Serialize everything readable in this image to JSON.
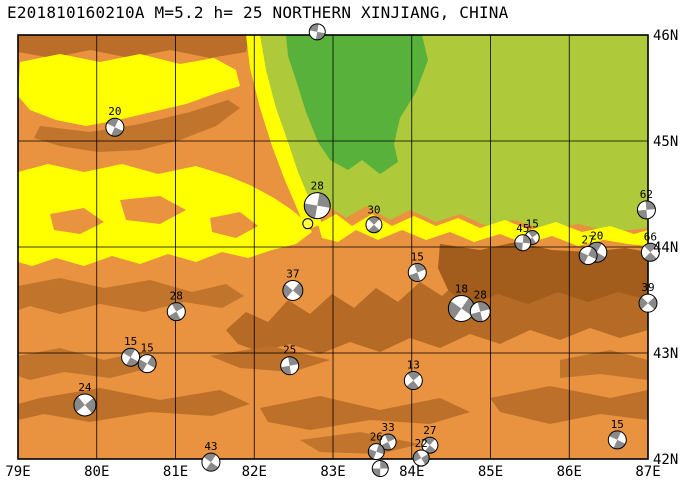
{
  "title": "E201810160210A M=5.2 h= 25 NORTHERN XINJIANG, CHINA",
  "map": {
    "lon_ticks": [
      "79E",
      "80E",
      "81E",
      "82E",
      "83E",
      "84E",
      "85E",
      "86E",
      "87E"
    ],
    "lat_ticks": [
      "46N",
      "45N",
      "44N",
      "43N",
      "42N"
    ],
    "lon_range": [
      79,
      87
    ],
    "lat_range": [
      42,
      46
    ],
    "colors": {
      "terrain_orange": "#e9923f",
      "ridge_brown": "#b56a25",
      "ridge_brown_dark": "#a25c1c",
      "lowland_yellow": "#ffff00",
      "basin_green": "#aec93a",
      "highland_green": "#57b13b",
      "ball_fill": "#ffffff",
      "ball_shade": "#8a8a8a",
      "epicenter_fill": "#ffff4d"
    },
    "epicenter": {
      "lon": 82.68,
      "lat": 44.22,
      "r": 5
    },
    "events": [
      {
        "depth": "20",
        "lon": 80.23,
        "lat": 45.13,
        "r": 9,
        "rot": 25
      },
      {
        "depth": "",
        "lon": 82.8,
        "lat": 46.03,
        "r": 8,
        "rot": 10
      },
      {
        "depth": "28",
        "lon": 82.8,
        "lat": 44.39,
        "r": 13,
        "rot": 100
      },
      {
        "depth": "30",
        "lon": 83.52,
        "lat": 44.21,
        "r": 8,
        "rot": 45
      },
      {
        "depth": "15",
        "lon": 84.07,
        "lat": 43.76,
        "r": 9,
        "rot": 70
      },
      {
        "depth": "37",
        "lon": 82.49,
        "lat": 43.59,
        "r": 10,
        "rot": 130
      },
      {
        "depth": "28",
        "lon": 81.01,
        "lat": 43.39,
        "r": 9,
        "rot": 60
      },
      {
        "depth": "15",
        "lon": 80.43,
        "lat": 42.96,
        "r": 9,
        "rot": 30
      },
      {
        "depth": "15",
        "lon": 80.64,
        "lat": 42.9,
        "r": 9,
        "rot": 120
      },
      {
        "depth": "25",
        "lon": 82.45,
        "lat": 42.88,
        "r": 9,
        "rot": 80
      },
      {
        "depth": "13",
        "lon": 84.02,
        "lat": 42.74,
        "r": 9,
        "rot": 50
      },
      {
        "depth": "24",
        "lon": 79.85,
        "lat": 42.51,
        "r": 11,
        "rot": 140
      },
      {
        "depth": "43",
        "lon": 81.45,
        "lat": 41.97,
        "r": 9,
        "rot": 35
      },
      {
        "depth": "33",
        "lon": 83.7,
        "lat": 42.16,
        "r": 8,
        "rot": 65
      },
      {
        "depth": "26",
        "lon": 83.55,
        "lat": 42.07,
        "r": 8,
        "rot": 110
      },
      {
        "depth": "",
        "lon": 83.6,
        "lat": 41.91,
        "r": 8,
        "rot": 90
      },
      {
        "depth": "27",
        "lon": 84.23,
        "lat": 42.13,
        "r": 8,
        "rot": 40
      },
      {
        "depth": "22",
        "lon": 84.12,
        "lat": 42.01,
        "r": 8,
        "rot": 150
      },
      {
        "depth": "18",
        "lon": 84.63,
        "lat": 43.42,
        "r": 13,
        "rot": 125
      },
      {
        "depth": "28",
        "lon": 84.87,
        "lat": 43.39,
        "r": 10,
        "rot": 75
      },
      {
        "depth": "15",
        "lon": 85.53,
        "lat": 44.09,
        "r": 7,
        "rot": 55
      },
      {
        "depth": "45",
        "lon": 85.41,
        "lat": 44.04,
        "r": 8,
        "rot": 95
      },
      {
        "depth": "20",
        "lon": 86.35,
        "lat": 43.95,
        "r": 10,
        "rot": 30
      },
      {
        "depth": "27",
        "lon": 86.24,
        "lat": 43.92,
        "r": 9,
        "rot": 115
      },
      {
        "depth": "62",
        "lon": 86.98,
        "lat": 44.35,
        "r": 9,
        "rot": 85
      },
      {
        "depth": "66",
        "lon": 87.03,
        "lat": 43.95,
        "r": 9,
        "rot": 45
      },
      {
        "depth": "39",
        "lon": 87.0,
        "lat": 43.47,
        "r": 9,
        "rot": 135
      },
      {
        "depth": "15",
        "lon": 86.61,
        "lat": 42.18,
        "r": 9,
        "rot": 25
      }
    ]
  }
}
